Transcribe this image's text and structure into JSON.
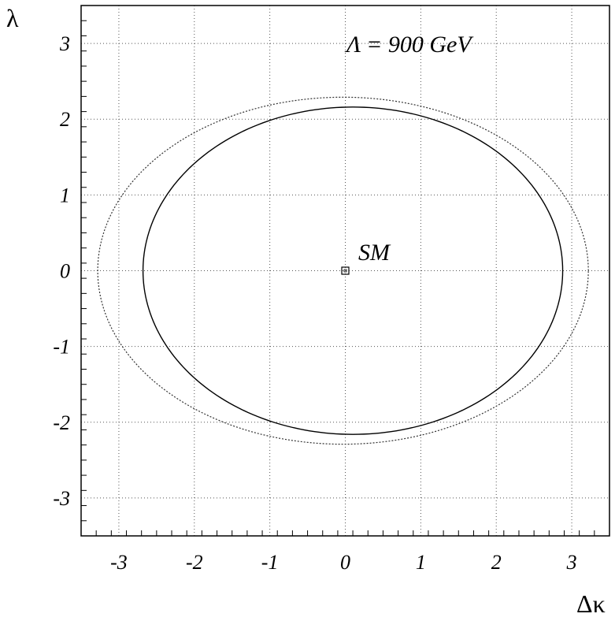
{
  "chart_data": {
    "type": "line",
    "title": "",
    "xlabel": "Δκ",
    "ylabel": "λ",
    "xlim": [
      -3.5,
      3.5
    ],
    "ylim": [
      -3.5,
      3.5
    ],
    "xticks": [
      -3,
      -2,
      -1,
      0,
      1,
      2,
      3
    ],
    "yticks": [
      -3,
      -2,
      -1,
      0,
      1,
      2,
      3
    ],
    "xtick_labels": [
      "-3",
      "-2",
      "-1",
      "0",
      "1",
      "2",
      "3"
    ],
    "ytick_labels": [
      "-3",
      "-2",
      "-1",
      "0",
      "1",
      "2",
      "3"
    ],
    "grid": true,
    "annotations": [
      {
        "text": "Λ = 900 GeV"
      },
      {
        "text": "SM"
      }
    ],
    "series": [
      {
        "style": "solid",
        "color": "#000000",
        "center": [
          0.1,
          0.0
        ],
        "x_semi_axis": 2.78,
        "y_semi_axis": 2.16,
        "x": [
          2.88,
          2.8,
          2.52,
          2.07,
          1.49,
          0.79,
          0.1,
          -0.59,
          -1.29,
          -1.87,
          -2.32,
          -2.6,
          -2.68,
          -2.6,
          -2.32,
          -1.87,
          -1.29,
          -0.59,
          0.1,
          0.79,
          1.49,
          2.07,
          2.52,
          2.8,
          2.88
        ],
        "y": [
          0.0,
          0.56,
          1.08,
          1.53,
          1.87,
          2.09,
          2.16,
          2.09,
          1.87,
          1.53,
          1.08,
          0.56,
          0.0,
          -0.56,
          -1.08,
          -1.53,
          -1.87,
          -2.09,
          -2.16,
          -2.09,
          -1.87,
          -1.53,
          -1.08,
          -0.56,
          0.0
        ]
      },
      {
        "style": "dotted",
        "color": "#333333",
        "center": [
          -0.03,
          0.0
        ],
        "x_semi_axis": 3.25,
        "y_semi_axis": 2.29,
        "x": [
          3.22,
          3.11,
          2.78,
          2.27,
          1.6,
          0.81,
          -0.03,
          -0.87,
          -1.66,
          -2.33,
          -2.84,
          -3.17,
          -3.28,
          -3.17,
          -2.84,
          -2.33,
          -1.66,
          -0.87,
          -0.03,
          0.81,
          1.6,
          2.27,
          2.78,
          3.11,
          3.22
        ],
        "y": [
          0.0,
          0.59,
          1.15,
          1.62,
          1.98,
          2.21,
          2.29,
          2.21,
          1.98,
          1.62,
          1.15,
          0.59,
          0.0,
          -0.59,
          -1.15,
          -1.62,
          -1.98,
          -2.21,
          -2.29,
          -2.21,
          -1.98,
          -1.62,
          -1.15,
          -0.59,
          0.0
        ]
      }
    ],
    "points": [
      {
        "x": 0,
        "y": 0,
        "marker": "open-square"
      }
    ]
  }
}
